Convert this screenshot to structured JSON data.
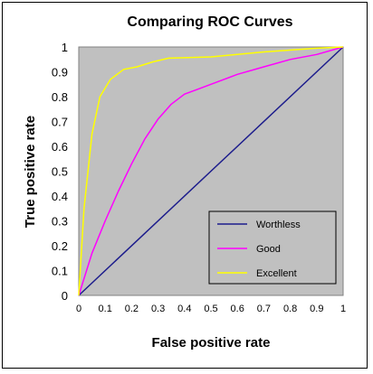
{
  "chart_data": {
    "type": "line",
    "title": "Comparing ROC Curves",
    "xlabel": "False positive rate",
    "ylabel": "True positive rate",
    "xlim": [
      0,
      1
    ],
    "ylim": [
      0,
      1
    ],
    "x_ticks": [
      "0",
      "0.1",
      "0.2",
      "0.3",
      "0.4",
      "0.5",
      "0.6",
      "0.7",
      "0.8",
      "0.9",
      "1"
    ],
    "y_ticks": [
      "0",
      "0.1",
      "0.2",
      "0.3",
      "0.4",
      "0.5",
      "0.6",
      "0.7",
      "0.8",
      "0.9",
      "1"
    ],
    "grid": false,
    "plot_background": "#c0c0c0",
    "legend_position": "bottom-right",
    "series": [
      {
        "name": "Worthless",
        "color": "#1c1c8c",
        "x": [
          0,
          1
        ],
        "y": [
          0,
          1
        ]
      },
      {
        "name": "Good",
        "color": "#ff00ff",
        "x": [
          0,
          0.05,
          0.1,
          0.15,
          0.2,
          0.25,
          0.3,
          0.35,
          0.4,
          0.45,
          0.5,
          0.6,
          0.7,
          0.8,
          0.9,
          1
        ],
        "y": [
          0,
          0.17,
          0.3,
          0.42,
          0.53,
          0.63,
          0.71,
          0.77,
          0.81,
          0.83,
          0.85,
          0.89,
          0.92,
          0.95,
          0.97,
          1
        ]
      },
      {
        "name": "Excellent",
        "color": "#ffff00",
        "x": [
          0,
          0.02,
          0.05,
          0.08,
          0.12,
          0.17,
          0.22,
          0.28,
          0.34,
          0.5,
          0.7,
          0.9,
          1
        ],
        "y": [
          0,
          0.35,
          0.65,
          0.8,
          0.87,
          0.91,
          0.92,
          0.94,
          0.955,
          0.96,
          0.98,
          0.995,
          1
        ]
      }
    ]
  }
}
